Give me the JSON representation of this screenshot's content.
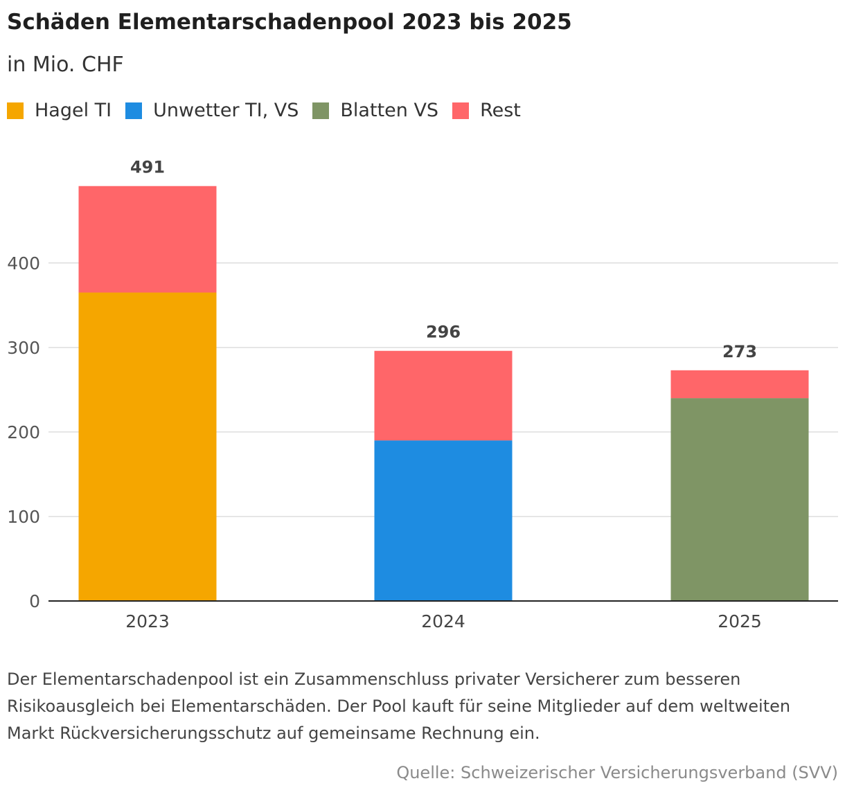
{
  "title": "Schäden Elementarschadenpool 2023 bis 2025",
  "subtitle": "in Mio. CHF",
  "legend": [
    {
      "label": "Hagel TI",
      "color": "#F5A600"
    },
    {
      "label": "Unwetter TI, VS",
      "color": "#1E8CE1"
    },
    {
      "label": "Blatten VS",
      "color": "#7F9565"
    },
    {
      "label": "Rest",
      "color": "#FF6669"
    }
  ],
  "chart_data": {
    "type": "bar",
    "stacked": true,
    "categories": [
      "2023",
      "2024",
      "2025"
    ],
    "series": [
      {
        "name": "Hagel TI",
        "color": "#F5A600",
        "values": [
          365,
          0,
          0
        ]
      },
      {
        "name": "Unwetter TI, VS",
        "color": "#1E8CE1",
        "values": [
          0,
          190,
          0
        ]
      },
      {
        "name": "Blatten VS",
        "color": "#7F9565",
        "values": [
          0,
          0,
          240
        ]
      },
      {
        "name": "Rest",
        "color": "#FF6669",
        "values": [
          126,
          106,
          33
        ]
      }
    ],
    "totals": [
      "491",
      "296",
      "273"
    ],
    "yticks": [
      0,
      100,
      200,
      300,
      400
    ],
    "ylim": [
      0,
      491
    ],
    "grid": true,
    "legend_position": "top-left"
  },
  "note": "Der Elementarschadenpool ist ein Zusammenschluss privater Versicherer zum besseren Risikoausgleich bei Elementarschäden. Der Pool kauft für seine Mitglieder auf dem weltweiten Markt Rückversicherungsschutz auf gemeinsame Rechnung ein.",
  "source": "Quelle: Schweizerischer Versicherungsverband (SVV)"
}
